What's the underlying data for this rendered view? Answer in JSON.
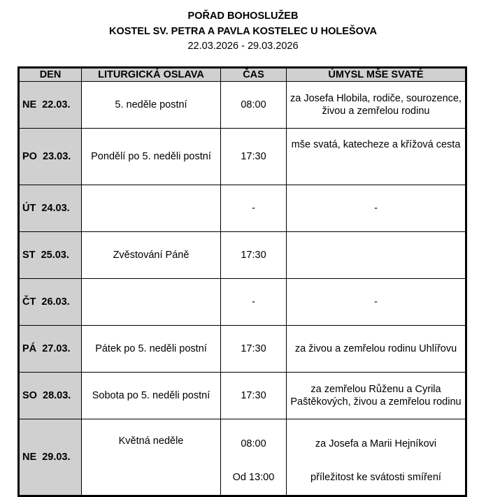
{
  "header": {
    "title": "POŘAD BOHOSLUŽEB",
    "subtitle": "KOSTEL SV. PETRA A PAVLA KOSTELEC U HOLEŠOVA",
    "date_range": "22.03.2026 - 29.03.2026"
  },
  "table": {
    "columns": [
      "DEN",
      "LITURGICKÁ OSLAVA",
      "ČAS",
      "ÚMYSL MŠE SVATÉ"
    ],
    "rows": [
      {
        "day": "NE  22.03.",
        "celebration": "5. neděle postní",
        "time": "08:00",
        "intention": "za Josefa Hlobila, rodiče, sourozence, živou a zemřelou rodinu"
      },
      {
        "day": "PO  23.03.",
        "celebration": "Pondělí po 5. neděli postní",
        "time": "17:30",
        "intention": "mše svatá, katecheze a křížová cesta"
      },
      {
        "day": "ÚT  24.03.",
        "celebration": "",
        "time": "-",
        "intention": "-"
      },
      {
        "day": "ST  25.03.",
        "celebration": "Zvěstování Páně",
        "time": "17:30",
        "intention": ""
      },
      {
        "day": "ČT  26.03.",
        "celebration": "",
        "time": "-",
        "intention": "-"
      },
      {
        "day": "PÁ  27.03.",
        "celebration": "Pátek po 5. neděli postní",
        "time": "17:30",
        "intention": "za živou a zemřelou rodinu Uhlířovu"
      },
      {
        "day": "SO  28.03.",
        "celebration": "Sobota po 5. neděli postní",
        "time": "17:30",
        "intention": "za zemřelou Růženu a Cyrila Paštěkových, živou a zemřelou rodinu"
      }
    ],
    "last_row": {
      "day": "NE  29.03.",
      "celebration": "Květná neděle",
      "time_1": "08:00",
      "intention_1": "za Josefa a Marii Hejníkovi",
      "time_2": "Od 13:00",
      "intention_2": "příležitost ke svátosti smíření"
    }
  }
}
